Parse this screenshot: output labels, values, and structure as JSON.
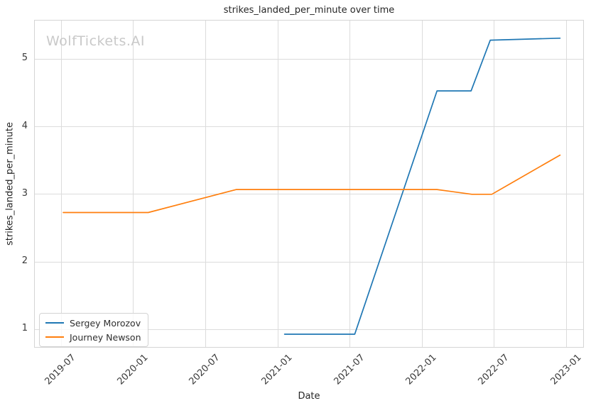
{
  "title": "strikes_landed_per_minute over time",
  "watermark": "WolfTickets.AI",
  "axes": {
    "x_label": "Date",
    "y_label": "strikes_landed_per_minute"
  },
  "legend": {
    "entries": [
      {
        "label": "Sergey Morozov",
        "color": "#1f77b4"
      },
      {
        "label": "Journey Newson",
        "color": "#ff7f0e"
      }
    ]
  },
  "chart_data": {
    "type": "line",
    "title": "strikes_landed_per_minute over time",
    "xlabel": "Date",
    "ylabel": "strikes_landed_per_minute",
    "grid": true,
    "legend_position": "lower left",
    "x_tick_labels": [
      "2019-07",
      "2020-01",
      "2020-07",
      "2021-01",
      "2021-07",
      "2022-01",
      "2022-07",
      "2023-01"
    ],
    "y_ticks": [
      1,
      2,
      3,
      4,
      5
    ],
    "x_domain_months_since_2019_01": [
      3.8,
      49.5
    ],
    "y_domain": [
      0.72,
      5.57
    ],
    "series": [
      {
        "name": "Sergey Morozov",
        "color": "#1f77b4",
        "points": [
          [
            "2021-01-18",
            0.93
          ],
          [
            "2021-07-13",
            0.93
          ],
          [
            "2022-02-08",
            4.53
          ],
          [
            "2022-05-03",
            4.53
          ],
          [
            "2022-06-21",
            5.28
          ],
          [
            "2022-12-15",
            5.31
          ]
        ]
      },
      {
        "name": "Journey Newson",
        "color": "#ff7f0e",
        "points": [
          [
            "2019-07-06",
            2.73
          ],
          [
            "2020-02-08",
            2.73
          ],
          [
            "2020-09-18",
            3.07
          ],
          [
            "2022-02-08",
            3.07
          ],
          [
            "2022-05-05",
            3.0
          ],
          [
            "2022-06-25",
            3.0
          ],
          [
            "2022-12-15",
            3.58
          ]
        ]
      }
    ]
  }
}
